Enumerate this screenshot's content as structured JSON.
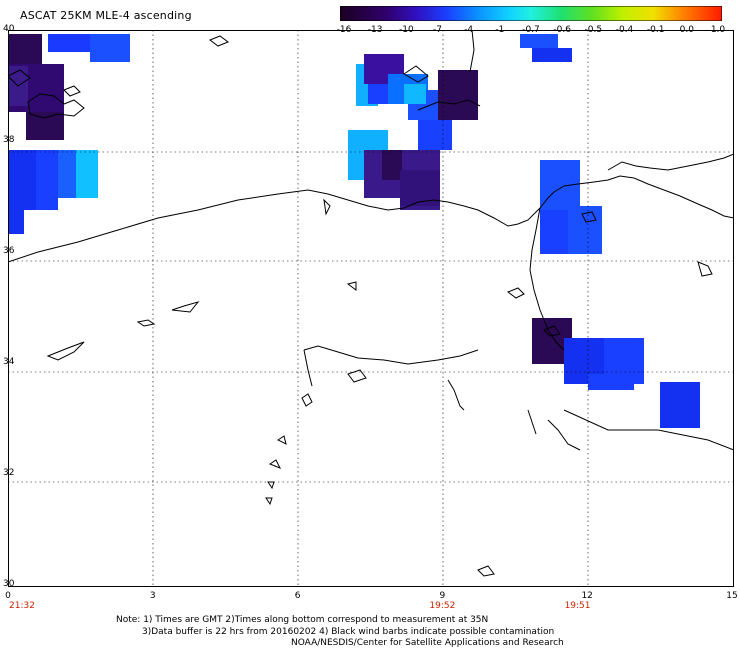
{
  "title": "ASCAT 25KM MLE-4 ascending",
  "colorbar": {
    "labels": [
      "-16",
      "-13",
      "-10",
      "-7",
      "-4",
      "-1",
      "-0.7",
      "-0.6",
      "-0.5",
      "-0.4",
      "-0.1",
      "0.0",
      "1.0"
    ],
    "colors": [
      "#1a0020",
      "#2b0050",
      "#3a0a9a",
      "#2030e0",
      "#0a70ff",
      "#10b8ff",
      "#20f0ff",
      "#20e0a0",
      "#40e040",
      "#a0f000",
      "#f0f000",
      "#ff9000",
      "#ff2000"
    ]
  },
  "axes": {
    "lat_labels": [
      "40",
      "38",
      "36",
      "34",
      "32",
      "30"
    ],
    "lon_labels": [
      "0",
      "3",
      "6",
      "9",
      "12",
      "15"
    ],
    "lat_range": [
      30,
      40
    ],
    "lon_range": [
      0,
      15
    ]
  },
  "times": [
    {
      "lon": 0,
      "label": "21:32"
    },
    {
      "lon": 9,
      "label": "19:52"
    },
    {
      "lon": 11.8,
      "label": "19:51"
    }
  ],
  "notes": [
    "Note: 1) Times are GMT 2)Times along bottom correspond to measurement at 35N",
    "3)Data buffer is 22 hrs from 20160202 4) Black wind barbs indicate possible contamination",
    "NOAA/NESDIS/Center for Satellite Applications and Research"
  ]
}
